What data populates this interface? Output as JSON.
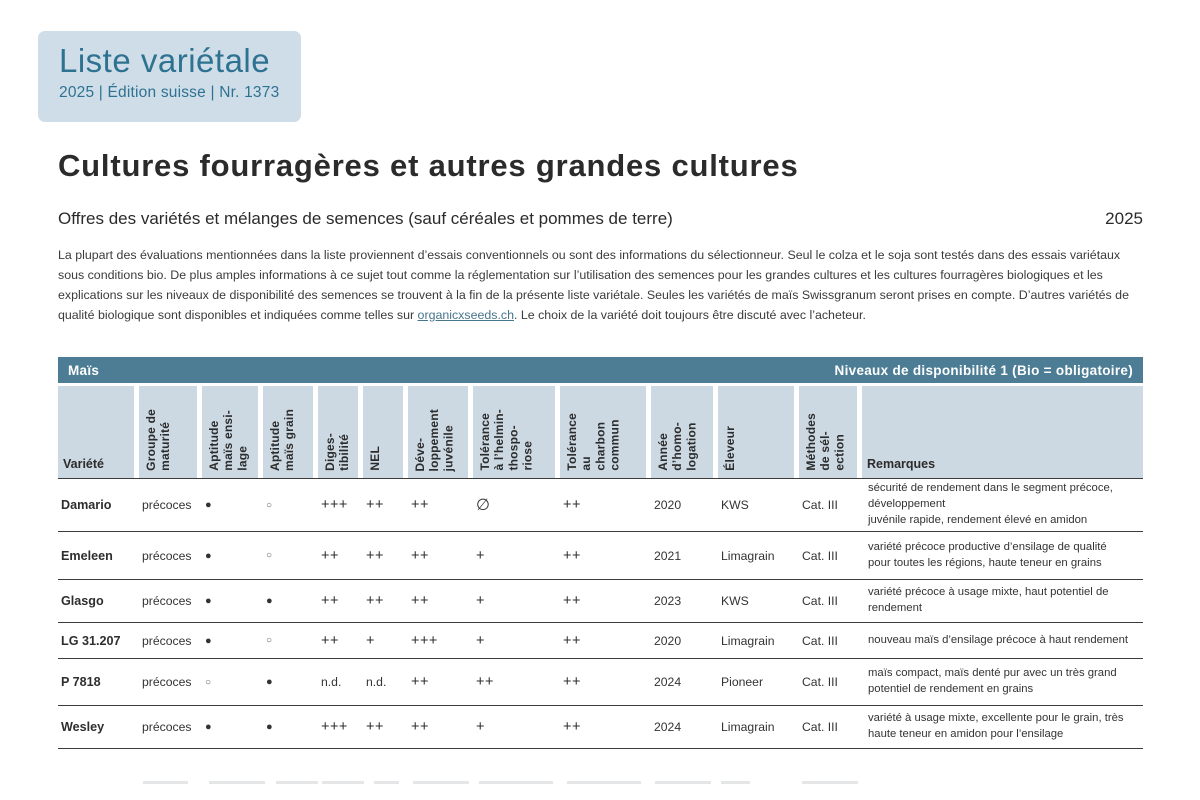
{
  "badge": {
    "title": "Liste variétale",
    "subtitle": "2025 | Édition suisse | Nr. 1373"
  },
  "page": {
    "title": "Cultures fourragères et autres grandes cultures",
    "subtitle": "Offres des variétés et mélanges de semences (sauf céréales et pommes de terre)",
    "year": "2025",
    "intro_before_link": "La plupart des évaluations mentionnées dans la liste proviennent d’essais conventionnels ou sont des informations du sélectionneur. Seul le colza et le soja sont testés dans des essais variétaux sous conditions bio. De plus amples informations à ce sujet tout comme la réglementation sur l’utilisation des semences pour les grandes cultures et les cultures fourragères biologiques et les explications sur les niveaux de disponibilité des semences se trouvent à la fin de la présente liste variétale. Seules les variétés de maïs Swissgranum seront prises en compte. D’autres variétés de qualité biologique sont disponibles et indiquées comme telles sur ",
    "intro_link": "organicxseeds.ch",
    "intro_after_link": ". Le choix de la variété doit toujours être discuté avec l’acheteur."
  },
  "table": {
    "section_title": "Maïs",
    "section_right": "Niveaux de disponibilité 1 (Bio = obligatoire)",
    "columns": [
      {
        "id": "variete",
        "label": "Variété",
        "orientation": "horizontal"
      },
      {
        "id": "groupe-de-maturite",
        "label": "Groupe de\nmaturité",
        "orientation": "vertical"
      },
      {
        "id": "aptitude-mais-ensilage",
        "label": "Aptitude\nmaïs ensi-\nlage",
        "orientation": "vertical"
      },
      {
        "id": "aptitude-mais-grain",
        "label": "Aptitude\nmaïs grain",
        "orientation": "vertical"
      },
      {
        "id": "digestibilite",
        "label": "Diges-\ntibilité",
        "orientation": "vertical"
      },
      {
        "id": "nel",
        "label": "NEL",
        "orientation": "vertical"
      },
      {
        "id": "developpement-juvenile",
        "label": "Déve-\nloppement\njuvénile",
        "orientation": "vertical"
      },
      {
        "id": "tolerance-helminthosporiose",
        "label": "Tolérance\nà l’helmin-\nthospo-\nriose",
        "orientation": "vertical"
      },
      {
        "id": "tolerance-charbon-commun",
        "label": "Tolérance\nau\ncharbon\ncommun",
        "orientation": "vertical"
      },
      {
        "id": "annee-homologation",
        "label": "Année\nd’homo-\nlogation",
        "orientation": "vertical"
      },
      {
        "id": "eleveur",
        "label": "Éleveur",
        "orientation": "vertical"
      },
      {
        "id": "methodes-de-selection",
        "label": "Méthodes\nde sél-\nection",
        "orientation": "vertical"
      },
      {
        "id": "remarques",
        "label": "Remarques",
        "orientation": "horizontal"
      }
    ],
    "rows": [
      {
        "variety": "Damario",
        "values": [
          "précoces",
          "●",
          "○",
          "+++",
          "++",
          "++",
          "∅",
          "++",
          "2020",
          "KWS",
          "Cat. III"
        ],
        "remark": "sécurité de rendement dans le segment précoce,\ndéveloppement\njuvénile rapide, rendement élevé en amidon"
      },
      {
        "variety": "Emeleen",
        "values": [
          "précoces",
          "●",
          "○",
          "++",
          "++",
          "++",
          "+",
          "++",
          "2021",
          "Limagrain",
          "Cat. III"
        ],
        "remark": "variété précoce productive d’ensilage de qualité\npour toutes les régions, haute teneur en grains"
      },
      {
        "variety": "Glasgo",
        "values": [
          "précoces",
          "●",
          "●",
          "++",
          "++",
          "++",
          "+",
          "++",
          "2023",
          "KWS",
          "Cat. III"
        ],
        "remark": "variété précoce à usage mixte, haut potentiel de\nrendement"
      },
      {
        "variety": "LG 31.207",
        "values": [
          "précoces",
          "●",
          "○",
          "++",
          "+",
          "+++",
          "+",
          "++",
          "2020",
          "Limagrain",
          "Cat. III"
        ],
        "remark": "nouveau maïs d’ensilage précoce à haut rendement"
      },
      {
        "variety": "P 7818",
        "values": [
          "précoces",
          "○",
          "●",
          "n.d.",
          "n.d.",
          "++",
          "++",
          "++",
          "2024",
          "Pioneer",
          "Cat. III"
        ],
        "remark": "maïs compact, maïs denté pur avec un très grand\npotentiel de rendement en grains"
      },
      {
        "variety": "Wesley",
        "values": [
          "précoces",
          "●",
          "●",
          "+++",
          "++",
          "++",
          "+",
          "++",
          "2024",
          "Limagrain",
          "Cat. III"
        ],
        "remark": "variété à usage mixte, excellente pour le grain, très\nhaute teneur en amidon pour l’ensilage"
      }
    ]
  },
  "colors": {
    "accent_teal": "#4c7d95",
    "badge_bg": "#cfdde9",
    "badge_text": "#2d7290",
    "header_cell_bg": "#ccd8e2"
  }
}
